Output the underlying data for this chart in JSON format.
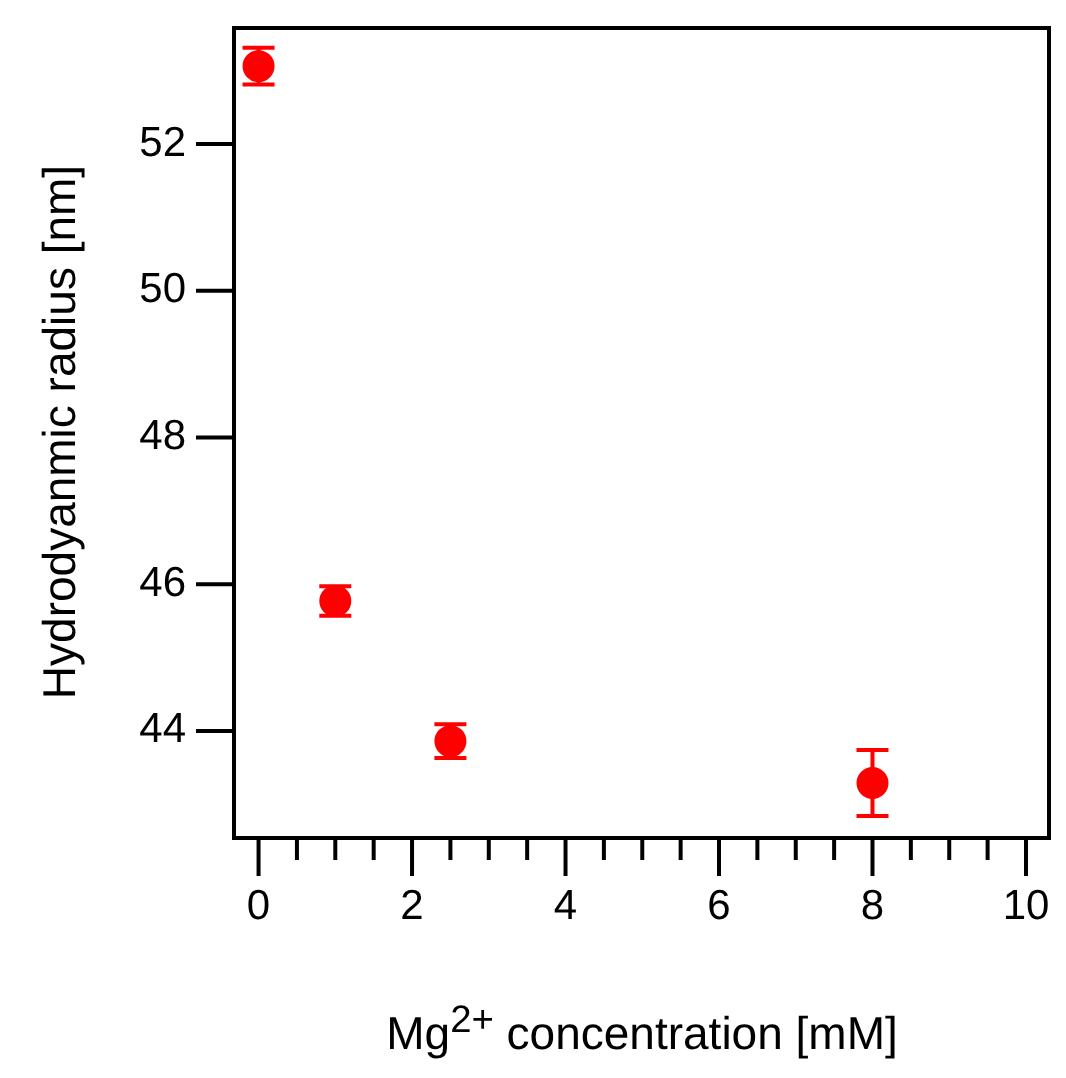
{
  "chart_data": {
    "type": "scatter",
    "xlabel": "Mg$^{2+}$ concentration [mM]",
    "ylabel": "Hydrodyanmic radius [nm]",
    "x": [
      0,
      1,
      2.5,
      8
    ],
    "series": [
      {
        "color": "#ff0000",
        "values": [
          53.06,
          45.77,
          43.86,
          43.29
        ],
        "errors": [
          0.25,
          0.2,
          0.23,
          0.45
        ]
      }
    ],
    "xlim": [
      -0.32,
      10.3
    ],
    "ylim": [
      42.54,
      53.58
    ],
    "xticks": [
      0,
      {
        "value": 0.5,
        "label": null
      },
      {
        "value": 1,
        "label": null
      },
      {
        "value": 1.5,
        "label": null
      },
      2,
      {
        "value": 2.5,
        "label": null
      },
      {
        "value": 3,
        "label": null
      },
      {
        "value": 3.5,
        "label": null
      },
      4,
      {
        "value": 4.5,
        "label": null
      },
      {
        "value": 5,
        "label": null
      },
      {
        "value": 5.5,
        "label": null
      },
      6,
      {
        "value": 6.5,
        "label": null
      },
      {
        "value": 7,
        "label": null
      },
      {
        "value": 7.5,
        "label": null
      },
      8,
      {
        "value": 8.5,
        "label": null
      },
      {
        "value": 9,
        "label": null
      },
      {
        "value": 9.5,
        "label": null
      },
      10
    ],
    "yticks": [
      44,
      46,
      48,
      50,
      52
    ],
    "grid": false,
    "legend": false,
    "marker": "circle"
  }
}
